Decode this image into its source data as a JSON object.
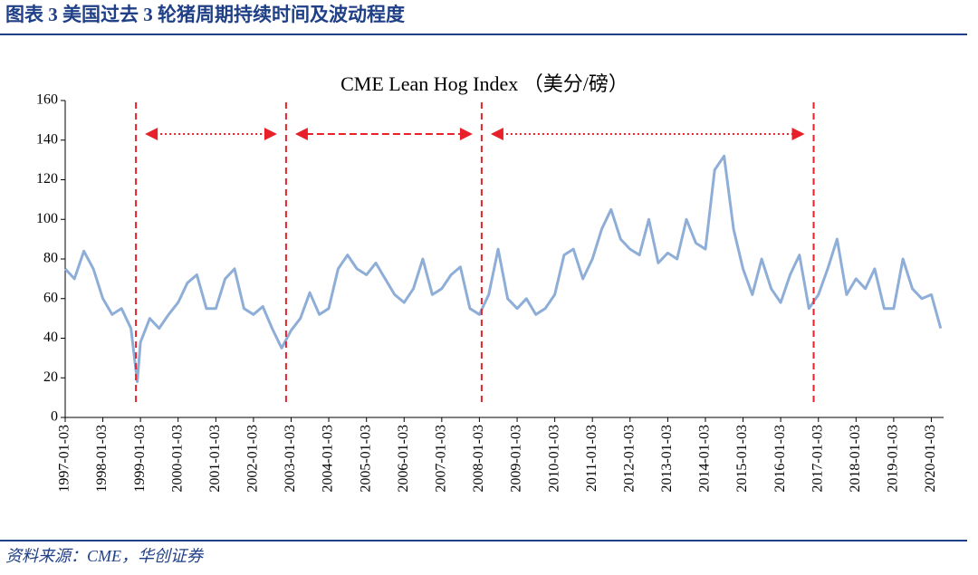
{
  "header": {
    "title": "图表 3   美国过去 3 轮猪周期持续时间及波动程度"
  },
  "source": "资料来源：CME，华创证券",
  "chart_data": {
    "type": "line",
    "title": "CME Lean Hog Index （美分/磅）",
    "x": [
      "1997-01-03",
      "1997-04-03",
      "1997-07-03",
      "1997-10-03",
      "1998-01-03",
      "1998-04-03",
      "1998-07-03",
      "1998-10-03",
      "1998-12-03",
      "1999-01-03",
      "1999-04-03",
      "1999-07-03",
      "1999-10-03",
      "2000-01-03",
      "2000-04-03",
      "2000-07-03",
      "2000-10-03",
      "2001-01-03",
      "2001-04-03",
      "2001-07-03",
      "2001-10-03",
      "2002-01-03",
      "2002-04-03",
      "2002-07-03",
      "2002-10-03",
      "2003-01-03",
      "2003-04-03",
      "2003-07-03",
      "2003-10-03",
      "2004-01-03",
      "2004-04-03",
      "2004-07-03",
      "2004-10-03",
      "2005-01-03",
      "2005-04-03",
      "2005-07-03",
      "2005-10-03",
      "2006-01-03",
      "2006-04-03",
      "2006-07-03",
      "2006-10-03",
      "2007-01-03",
      "2007-04-03",
      "2007-07-03",
      "2007-10-03",
      "2008-01-03",
      "2008-04-03",
      "2008-07-03",
      "2008-10-03",
      "2009-01-03",
      "2009-04-03",
      "2009-07-03",
      "2009-10-03",
      "2010-01-03",
      "2010-04-03",
      "2010-07-03",
      "2010-10-03",
      "2011-01-03",
      "2011-04-03",
      "2011-07-03",
      "2011-10-03",
      "2012-01-03",
      "2012-04-03",
      "2012-07-03",
      "2012-10-03",
      "2013-01-03",
      "2013-04-03",
      "2013-07-03",
      "2013-10-03",
      "2014-01-03",
      "2014-04-03",
      "2014-07-03",
      "2014-10-03",
      "2015-01-03",
      "2015-04-03",
      "2015-07-03",
      "2015-10-03",
      "2016-01-03",
      "2016-04-03",
      "2016-07-03",
      "2016-10-03",
      "2017-01-03",
      "2017-04-03",
      "2017-07-03",
      "2017-10-03",
      "2018-01-03",
      "2018-04-03",
      "2018-07-03",
      "2018-10-03",
      "2019-01-03",
      "2019-04-03",
      "2019-07-03",
      "2019-10-03",
      "2020-01-03",
      "2020-04-03"
    ],
    "series": [
      {
        "name": "CME Lean Hog Index",
        "color": "#8eaed8",
        "values": [
          75,
          70,
          84,
          75,
          60,
          52,
          55,
          45,
          18,
          38,
          50,
          45,
          52,
          58,
          68,
          72,
          55,
          55,
          70,
          75,
          55,
          52,
          56,
          45,
          35,
          44,
          50,
          63,
          52,
          55,
          75,
          82,
          75,
          72,
          78,
          70,
          62,
          58,
          65,
          80,
          62,
          65,
          72,
          76,
          55,
          52,
          62,
          85,
          60,
          55,
          60,
          52,
          55,
          62,
          82,
          85,
          70,
          80,
          95,
          105,
          90,
          85,
          82,
          100,
          78,
          83,
          80,
          100,
          88,
          85,
          125,
          132,
          95,
          75,
          62,
          80,
          65,
          58,
          72,
          82,
          55,
          62,
          75,
          90,
          62,
          70,
          65,
          75,
          55,
          55,
          80,
          65,
          60,
          62,
          45
        ]
      }
    ],
    "xlim": [
      "1997-01-03",
      "2020-05-01"
    ],
    "xticks": [
      "1997-01-03",
      "1998-01-03",
      "1999-01-03",
      "2000-01-03",
      "2001-01-03",
      "2002-01-03",
      "2003-01-03",
      "2004-01-03",
      "2005-01-03",
      "2006-01-03",
      "2007-01-03",
      "2008-01-03",
      "2009-01-03",
      "2010-01-03",
      "2011-01-03",
      "2012-01-03",
      "2013-01-03",
      "2014-01-03",
      "2015-01-03",
      "2016-01-03",
      "2017-01-03",
      "2018-01-03",
      "2019-01-03",
      "2020-01-03"
    ],
    "ylim": [
      0,
      160
    ],
    "yticks": [
      0,
      20,
      40,
      60,
      80,
      100,
      120,
      140,
      160
    ],
    "markers": [
      "1998-11-20",
      "2002-11-15",
      "2008-01-25",
      "2016-11-18"
    ],
    "marker_color": "#e8202a"
  }
}
